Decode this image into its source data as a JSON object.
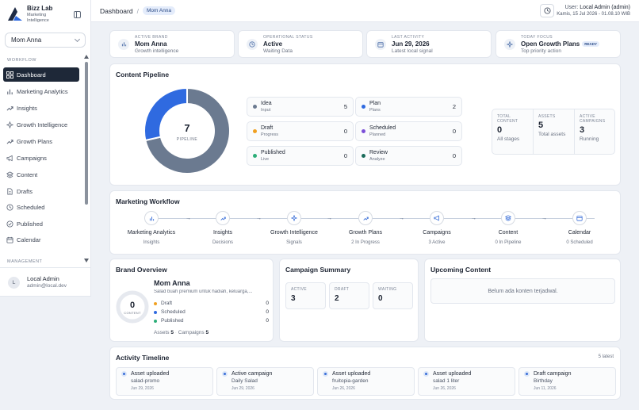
{
  "brand": {
    "name": "Bizz Lab",
    "tagline_line1": "Marketing",
    "tagline_line2": "Intelligence"
  },
  "brand_selector": {
    "value": "Mom Anna"
  },
  "sidebar": {
    "workflow_label": "WORKFLOW",
    "management_label": "MANAGEMENT",
    "items": [
      {
        "label": "Dashboard",
        "icon": "dashboard-icon"
      },
      {
        "label": "Marketing Analytics",
        "icon": "bar-chart-icon"
      },
      {
        "label": "Insights",
        "icon": "trend-icon"
      },
      {
        "label": "Growth Intelligence",
        "icon": "sparkle-icon"
      },
      {
        "label": "Growth Plans",
        "icon": "trend-icon"
      },
      {
        "label": "Campaigns",
        "icon": "megaphone-icon"
      },
      {
        "label": "Content",
        "icon": "layers-icon"
      },
      {
        "label": "Drafts",
        "icon": "document-icon"
      },
      {
        "label": "Scheduled",
        "icon": "clock-icon"
      },
      {
        "label": "Published",
        "icon": "check-circle-icon"
      },
      {
        "label": "Calendar",
        "icon": "calendar-icon"
      }
    ],
    "user": {
      "initial": "L",
      "name": "Local Admin",
      "email": "admin@local.dev"
    }
  },
  "topbar": {
    "breadcrumb_root": "Dashboard",
    "breadcrumb_sep": "/",
    "breadcrumb_brand": "Mom Anna",
    "user_label": "User:",
    "user_name": "Local Admin (admin)",
    "datetime": "Kamis, 15 Jul 2026 - 01.08.10 WIB"
  },
  "stats": [
    {
      "label": "ACTIVE BRAND",
      "value": "Mom Anna",
      "sub": "Growth intelligence",
      "icon": "bar-chart-icon"
    },
    {
      "label": "OPERATIONAL STATUS",
      "value": "Active",
      "sub": "Waiting Data",
      "icon": "clock-icon"
    },
    {
      "label": "LAST ACTIVITY",
      "value": "Jun 29, 2026",
      "sub": "Latest local signal",
      "icon": "calendar-icon"
    },
    {
      "label": "TODAY FOCUS",
      "value": "Open Growth Plans",
      "badge": "READY",
      "sub": "Top priority action",
      "icon": "sparkle-icon"
    }
  ],
  "pipeline": {
    "title": "Content Pipeline",
    "total": "7",
    "total_label": "PIPELINE",
    "chart_data": {
      "type": "pie",
      "categories": [
        "Idea",
        "Plan"
      ],
      "values": [
        5,
        2
      ],
      "colors": [
        "#6b7a90",
        "#2f6ae0"
      ]
    },
    "stages": [
      {
        "name": "Idea",
        "sub": "Input",
        "value": "5",
        "color": "#6b7a90"
      },
      {
        "name": "Plan",
        "sub": "Plans",
        "value": "2",
        "color": "#2f6ae0"
      },
      {
        "name": "Draft",
        "sub": "Progress",
        "value": "0",
        "color": "#f0a020"
      },
      {
        "name": "Scheduled",
        "sub": "Planned",
        "value": "0",
        "color": "#7b4fd8"
      },
      {
        "name": "Published",
        "sub": "Live",
        "value": "0",
        "color": "#2cae78"
      },
      {
        "name": "Review",
        "sub": "Analyze",
        "value": "0",
        "color": "#1a6b5a"
      }
    ],
    "summary": [
      {
        "label1": "TOTAL",
        "label2": "CONTENT",
        "value": "0",
        "sub": "All stages"
      },
      {
        "label1": "ASSETS",
        "label2": "",
        "value": "5",
        "sub": "Total assets"
      },
      {
        "label1": "ACTIVE",
        "label2": "CAMPAIGNS",
        "value": "3",
        "sub": "Running"
      }
    ]
  },
  "workflow": {
    "title": "Marketing Workflow",
    "steps": [
      {
        "label": "Marketing Analytics",
        "sub": "Insights",
        "icon": "bar-chart-icon"
      },
      {
        "label": "Insights",
        "sub": "Decisions",
        "icon": "trend-icon"
      },
      {
        "label": "Growth Intelligence",
        "sub": "Signals",
        "icon": "sparkle-icon"
      },
      {
        "label": "Growth Plans",
        "sub": "2 In Progress",
        "icon": "trend-icon"
      },
      {
        "label": "Campaigns",
        "sub": "3 Active",
        "icon": "megaphone-icon"
      },
      {
        "label": "Content",
        "sub": "0 In Pipeline",
        "icon": "layers-icon"
      },
      {
        "label": "Calendar",
        "sub": "0 Scheduled",
        "icon": "calendar-icon"
      }
    ]
  },
  "brand_overview": {
    "title": "Brand Overview",
    "ring_value": "0",
    "ring_label": "CONTENT",
    "name": "Mom Anna",
    "desc": "Salad buah premium untuk hadiah, keluarga,...",
    "rows": [
      {
        "label": "Draft",
        "value": "0",
        "color": "#f0a020"
      },
      {
        "label": "Scheduled",
        "value": "0",
        "color": "#2f6ae0"
      },
      {
        "label": "Published",
        "value": "0",
        "color": "#2cae78"
      }
    ],
    "assets_label": "Assets",
    "assets_value": "5",
    "campaigns_label": "Campaigns",
    "campaigns_value": "5"
  },
  "campaign_summary": {
    "title": "Campaign Summary",
    "boxes": [
      {
        "label": "ACTIVE",
        "value": "3"
      },
      {
        "label": "DRAFT",
        "value": "2"
      },
      {
        "label": "WAITING",
        "value": "0"
      }
    ]
  },
  "upcoming": {
    "title": "Upcoming Content",
    "empty": "Belum ada konten terjadwal."
  },
  "activity": {
    "title": "Activity Timeline",
    "count": "5 latest",
    "items": [
      {
        "title": "Asset uploaded",
        "sub": "salad-promo",
        "date": "Jun 29, 2026"
      },
      {
        "title": "Active campaign",
        "sub": "Daily Salad",
        "date": "Jun 29, 2026"
      },
      {
        "title": "Asset uploaded",
        "sub": "fruitopia-garden",
        "date": "Jun 26, 2026"
      },
      {
        "title": "Asset uploaded",
        "sub": "salad 1 liter",
        "date": "Jun 26, 2026"
      },
      {
        "title": "Draft campaign",
        "sub": "Birthday",
        "date": "Jun 11, 2026"
      }
    ]
  }
}
